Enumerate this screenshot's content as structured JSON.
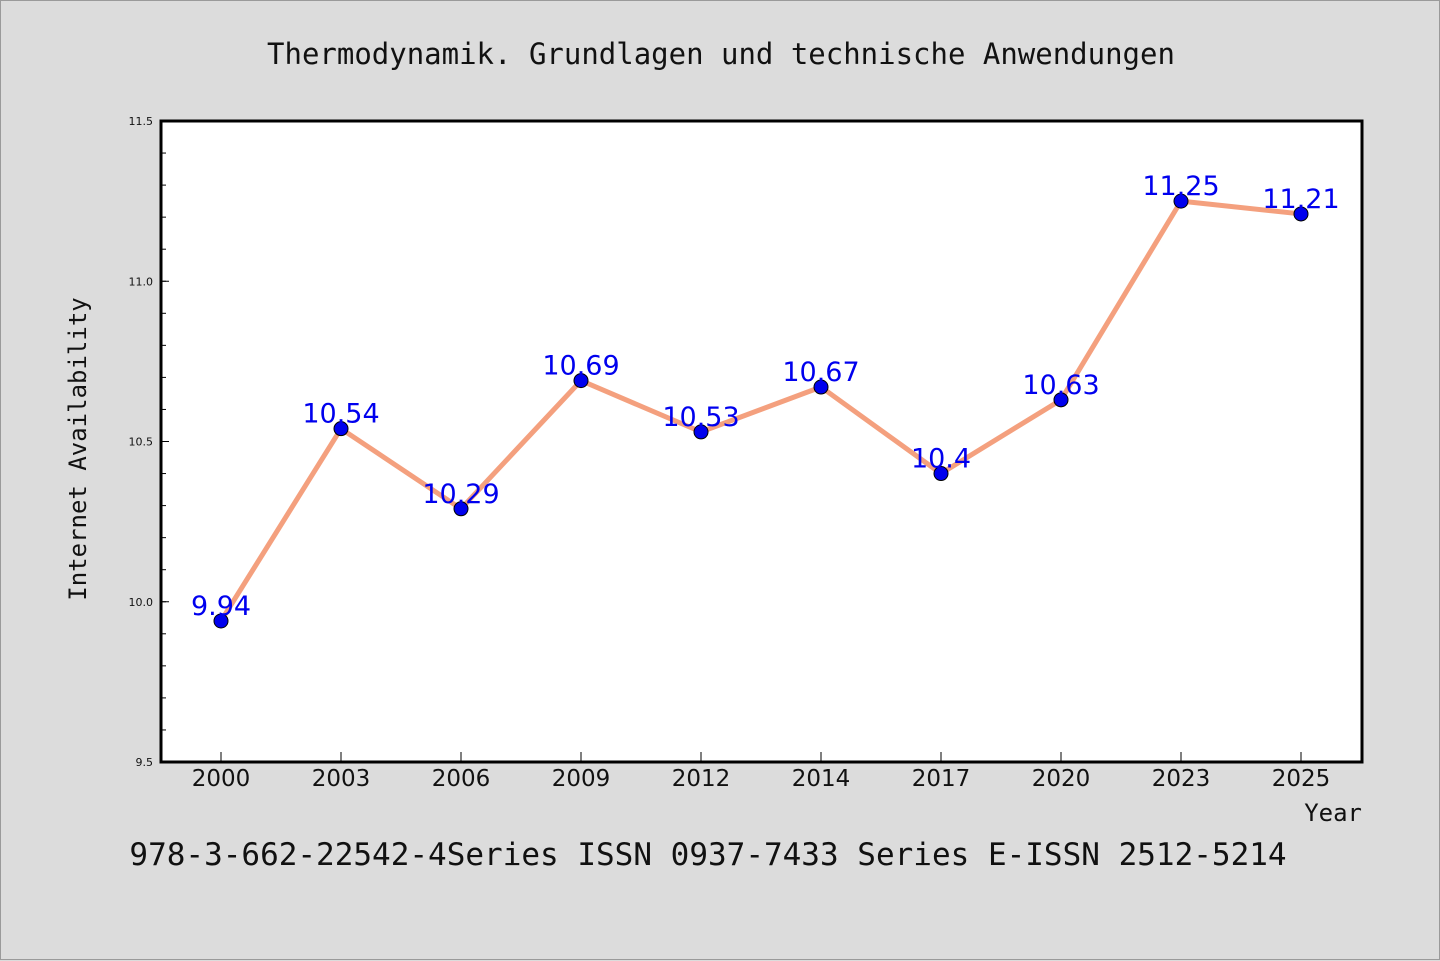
{
  "chart_data": {
    "type": "line",
    "title": "Thermodynamik. Grundlagen und technische Anwendungen",
    "xlabel": "Year",
    "ylabel": "Internet Availability",
    "categories": [
      "2000",
      "2003",
      "2006",
      "2009",
      "2012",
      "2014",
      "2017",
      "2020",
      "2023",
      "2025"
    ],
    "series": [
      {
        "values": [
          9.94,
          10.54,
          10.29,
          10.69,
          10.53,
          10.67,
          10.4,
          10.63,
          11.25,
          11.21
        ],
        "labels": [
          "9.94",
          "10.54",
          "10.29",
          "10.69",
          "10.53",
          "10.67",
          "10.4",
          "10.63",
          "11.25",
          "11.21"
        ],
        "line_color": "#f4a07e",
        "marker_color": "#0000ee",
        "label_color": "#0000ee"
      }
    ],
    "ylim": [
      9.5,
      11.5
    ],
    "yticks": [
      "9.5",
      "10.0",
      "10.5",
      "11.0",
      "11.5"
    ],
    "grid": false,
    "legend": "none"
  },
  "footer": "978-3-662-22542-4Series ISSN 0937-7433 Series E-ISSN 2512-5214"
}
